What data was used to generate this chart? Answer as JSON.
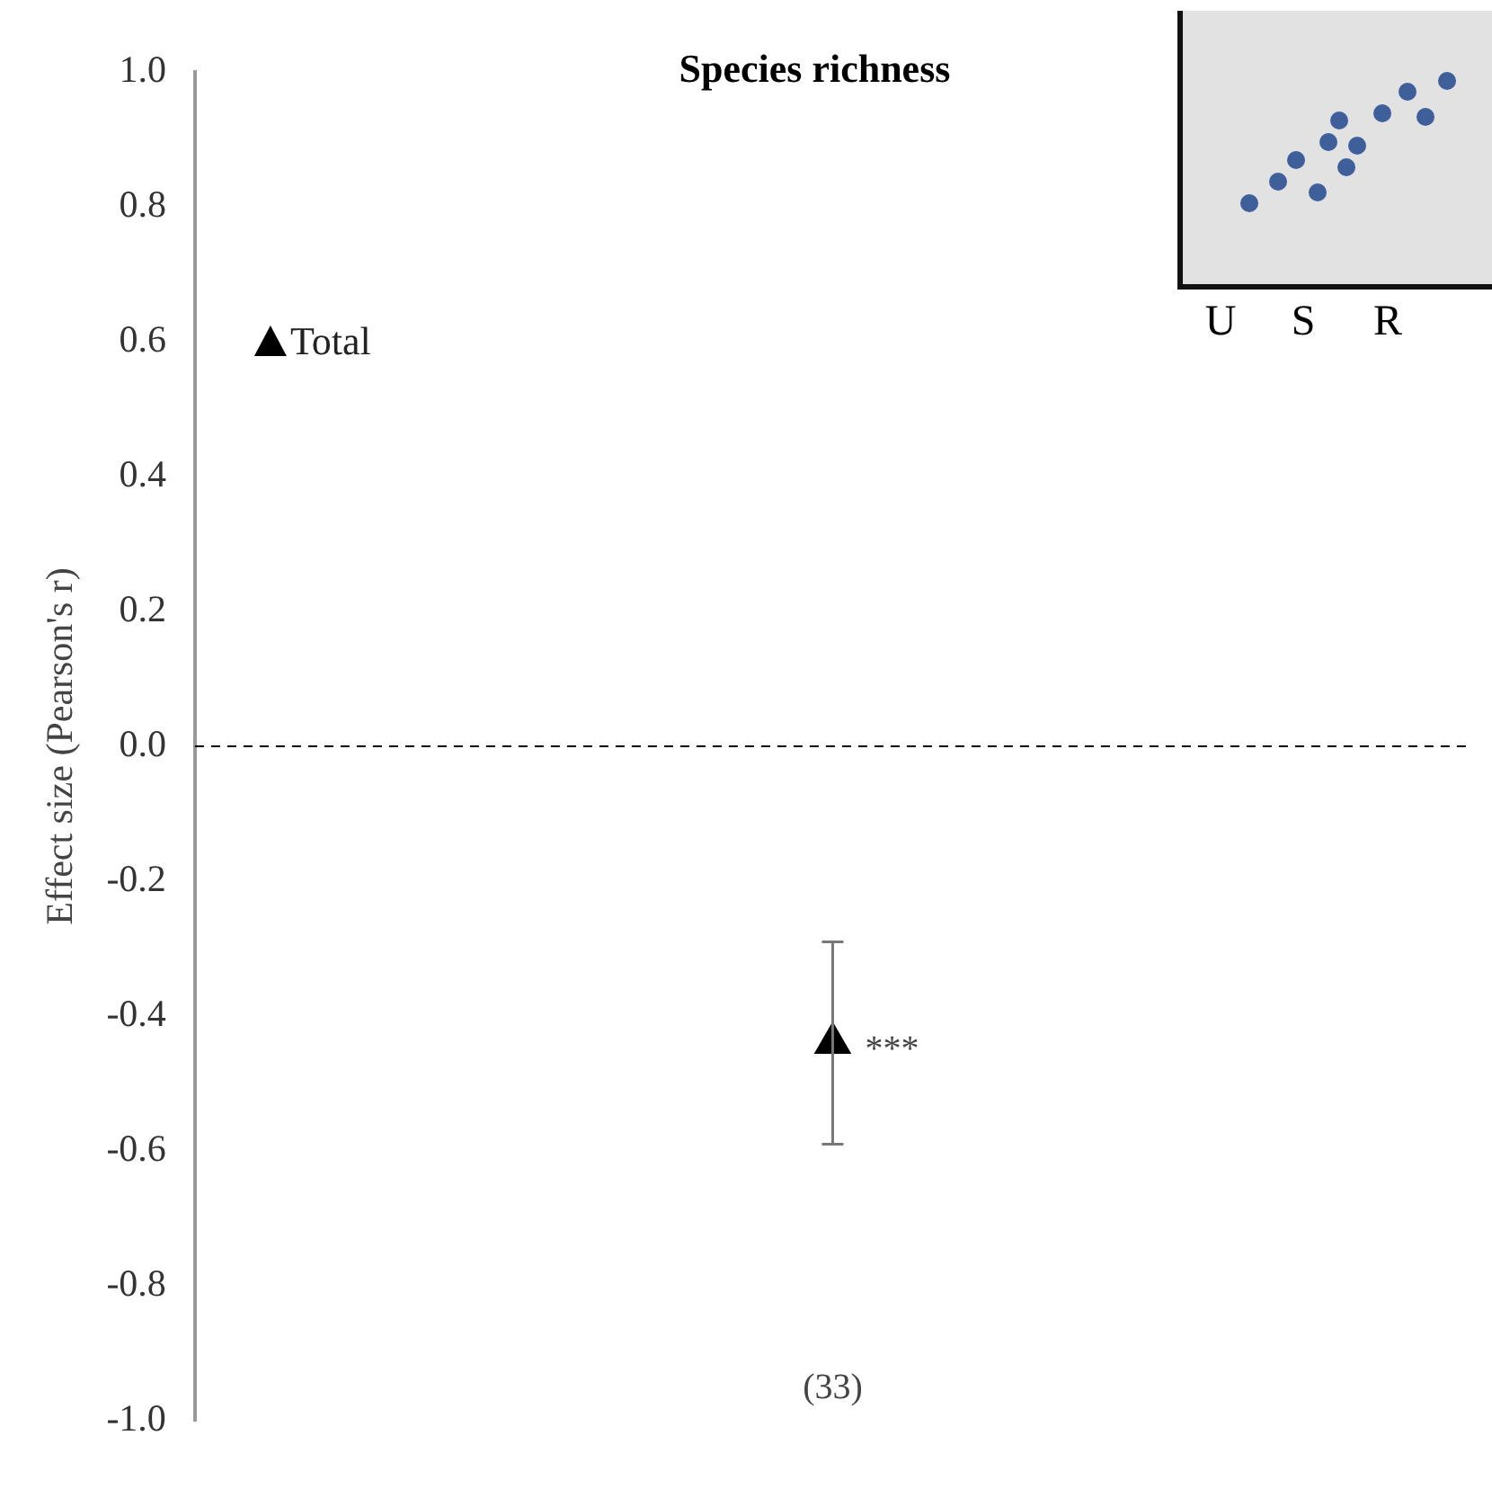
{
  "chart_data": {
    "type": "scatter",
    "title": "Species richness",
    "ylabel": "Effect size (Pearson's r)",
    "categories": [
      null
    ],
    "series": [
      {
        "name": "Total",
        "color": "#000000",
        "values": [
          -0.44
        ],
        "errors": [
          [
            -0.59,
            -0.29
          ]
        ]
      }
    ],
    "ylim": [
      -1,
      1
    ],
    "yticks": [
      {
        "value": -1,
        "label": "-1.0"
      },
      {
        "value": -0.8,
        "label": "-0.8"
      },
      {
        "value": -0.6,
        "label": "-0.6"
      },
      {
        "value": -0.4,
        "label": "-0.4"
      },
      {
        "value": -0.2,
        "label": "-0.2"
      },
      {
        "value": 0,
        "label": "0.0"
      },
      {
        "value": 0.2,
        "label": "0.2"
      },
      {
        "value": 0.4,
        "label": "0.4"
      },
      {
        "value": 0.6,
        "label": "0.6"
      },
      {
        "value": 0.8,
        "label": "0.8"
      },
      {
        "value": 1,
        "label": "1.0"
      }
    ],
    "ref_lines": [
      {
        "axis": "y",
        "value": 0,
        "color": "#000000",
        "line_style": "dashed"
      }
    ],
    "annotations": [
      "***",
      "(33)",
      "U",
      "S",
      "R"
    ],
    "marker": "triangle",
    "legend": "top left",
    "grid": false
  }
}
